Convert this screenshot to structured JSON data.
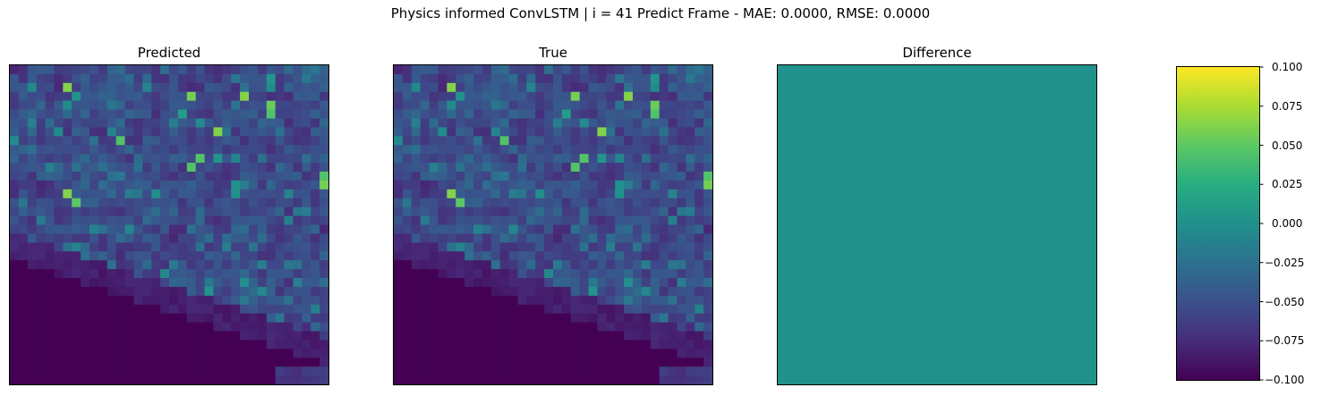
{
  "chart_data": [
    {
      "type": "heatmap",
      "title": "Physics informed ConvLSTM | i = 41 Predict Frame - MAE: 0.0000, RMSE: 0.0000"
    },
    {
      "type": "heatmap",
      "title": "Predicted",
      "grid_size": 36,
      "colormap": "viridis",
      "seed": 7
    },
    {
      "type": "heatmap",
      "title": "True",
      "grid_size": 36,
      "colormap": "viridis",
      "seed": 7
    },
    {
      "type": "heatmap",
      "title": "Difference",
      "grid_size": 36,
      "constant_value": 0.0,
      "color": "#21918c"
    },
    {
      "type": "colorbar",
      "colormap": "viridis",
      "vmin": -0.1,
      "vmax": 0.1,
      "ticks": [
        {
          "value": 0.1,
          "label": "0.100"
        },
        {
          "value": 0.075,
          "label": "0.075"
        },
        {
          "value": 0.05,
          "label": "0.050"
        },
        {
          "value": 0.025,
          "label": "0.025"
        },
        {
          "value": 0.0,
          "label": "0.000"
        },
        {
          "value": -0.025,
          "label": "−0.025"
        },
        {
          "value": -0.05,
          "label": "−0.050"
        },
        {
          "value": -0.075,
          "label": "−0.075"
        },
        {
          "value": -0.1,
          "label": "−0.100"
        }
      ]
    }
  ]
}
